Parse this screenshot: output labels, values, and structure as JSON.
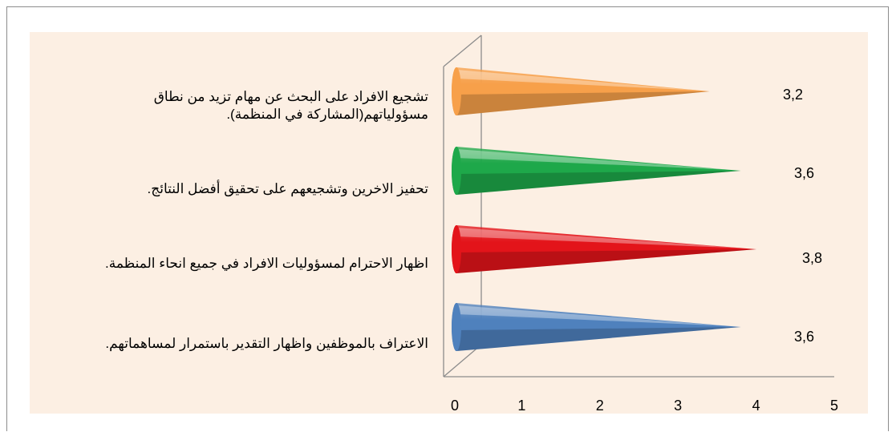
{
  "chart_data": {
    "type": "bar",
    "orientation": "horizontal",
    "style": "3d-cones",
    "categories": [
      "الاعتراف بالموظفين واظهار التقدير باستمرار لمساهماتهم.",
      "اظهار الاحترام لمسؤوليات الافراد في جميع انحاء المنظمة.",
      "تحفيز الاخرين وتشجيعهم على تحقيق أفضل النتائج.",
      "تشجيع الافراد على البحث عن مهام تزيد من نطاق مسؤولياتهم(المشاركة في المنظمة)."
    ],
    "values": [
      3.6,
      3.8,
      3.6,
      3.2
    ],
    "value_labels": [
      "3,6",
      "3,8",
      "3,6",
      "3,2"
    ],
    "colors": [
      "#4f81bd",
      "#e3141a",
      "#1ea84a",
      "#f7a04a"
    ],
    "x_ticks": [
      "0",
      "1",
      "2",
      "3",
      "4",
      "5"
    ],
    "xlim": [
      0,
      5
    ],
    "grid": false,
    "legend": "none",
    "background": "#fcefe3"
  }
}
